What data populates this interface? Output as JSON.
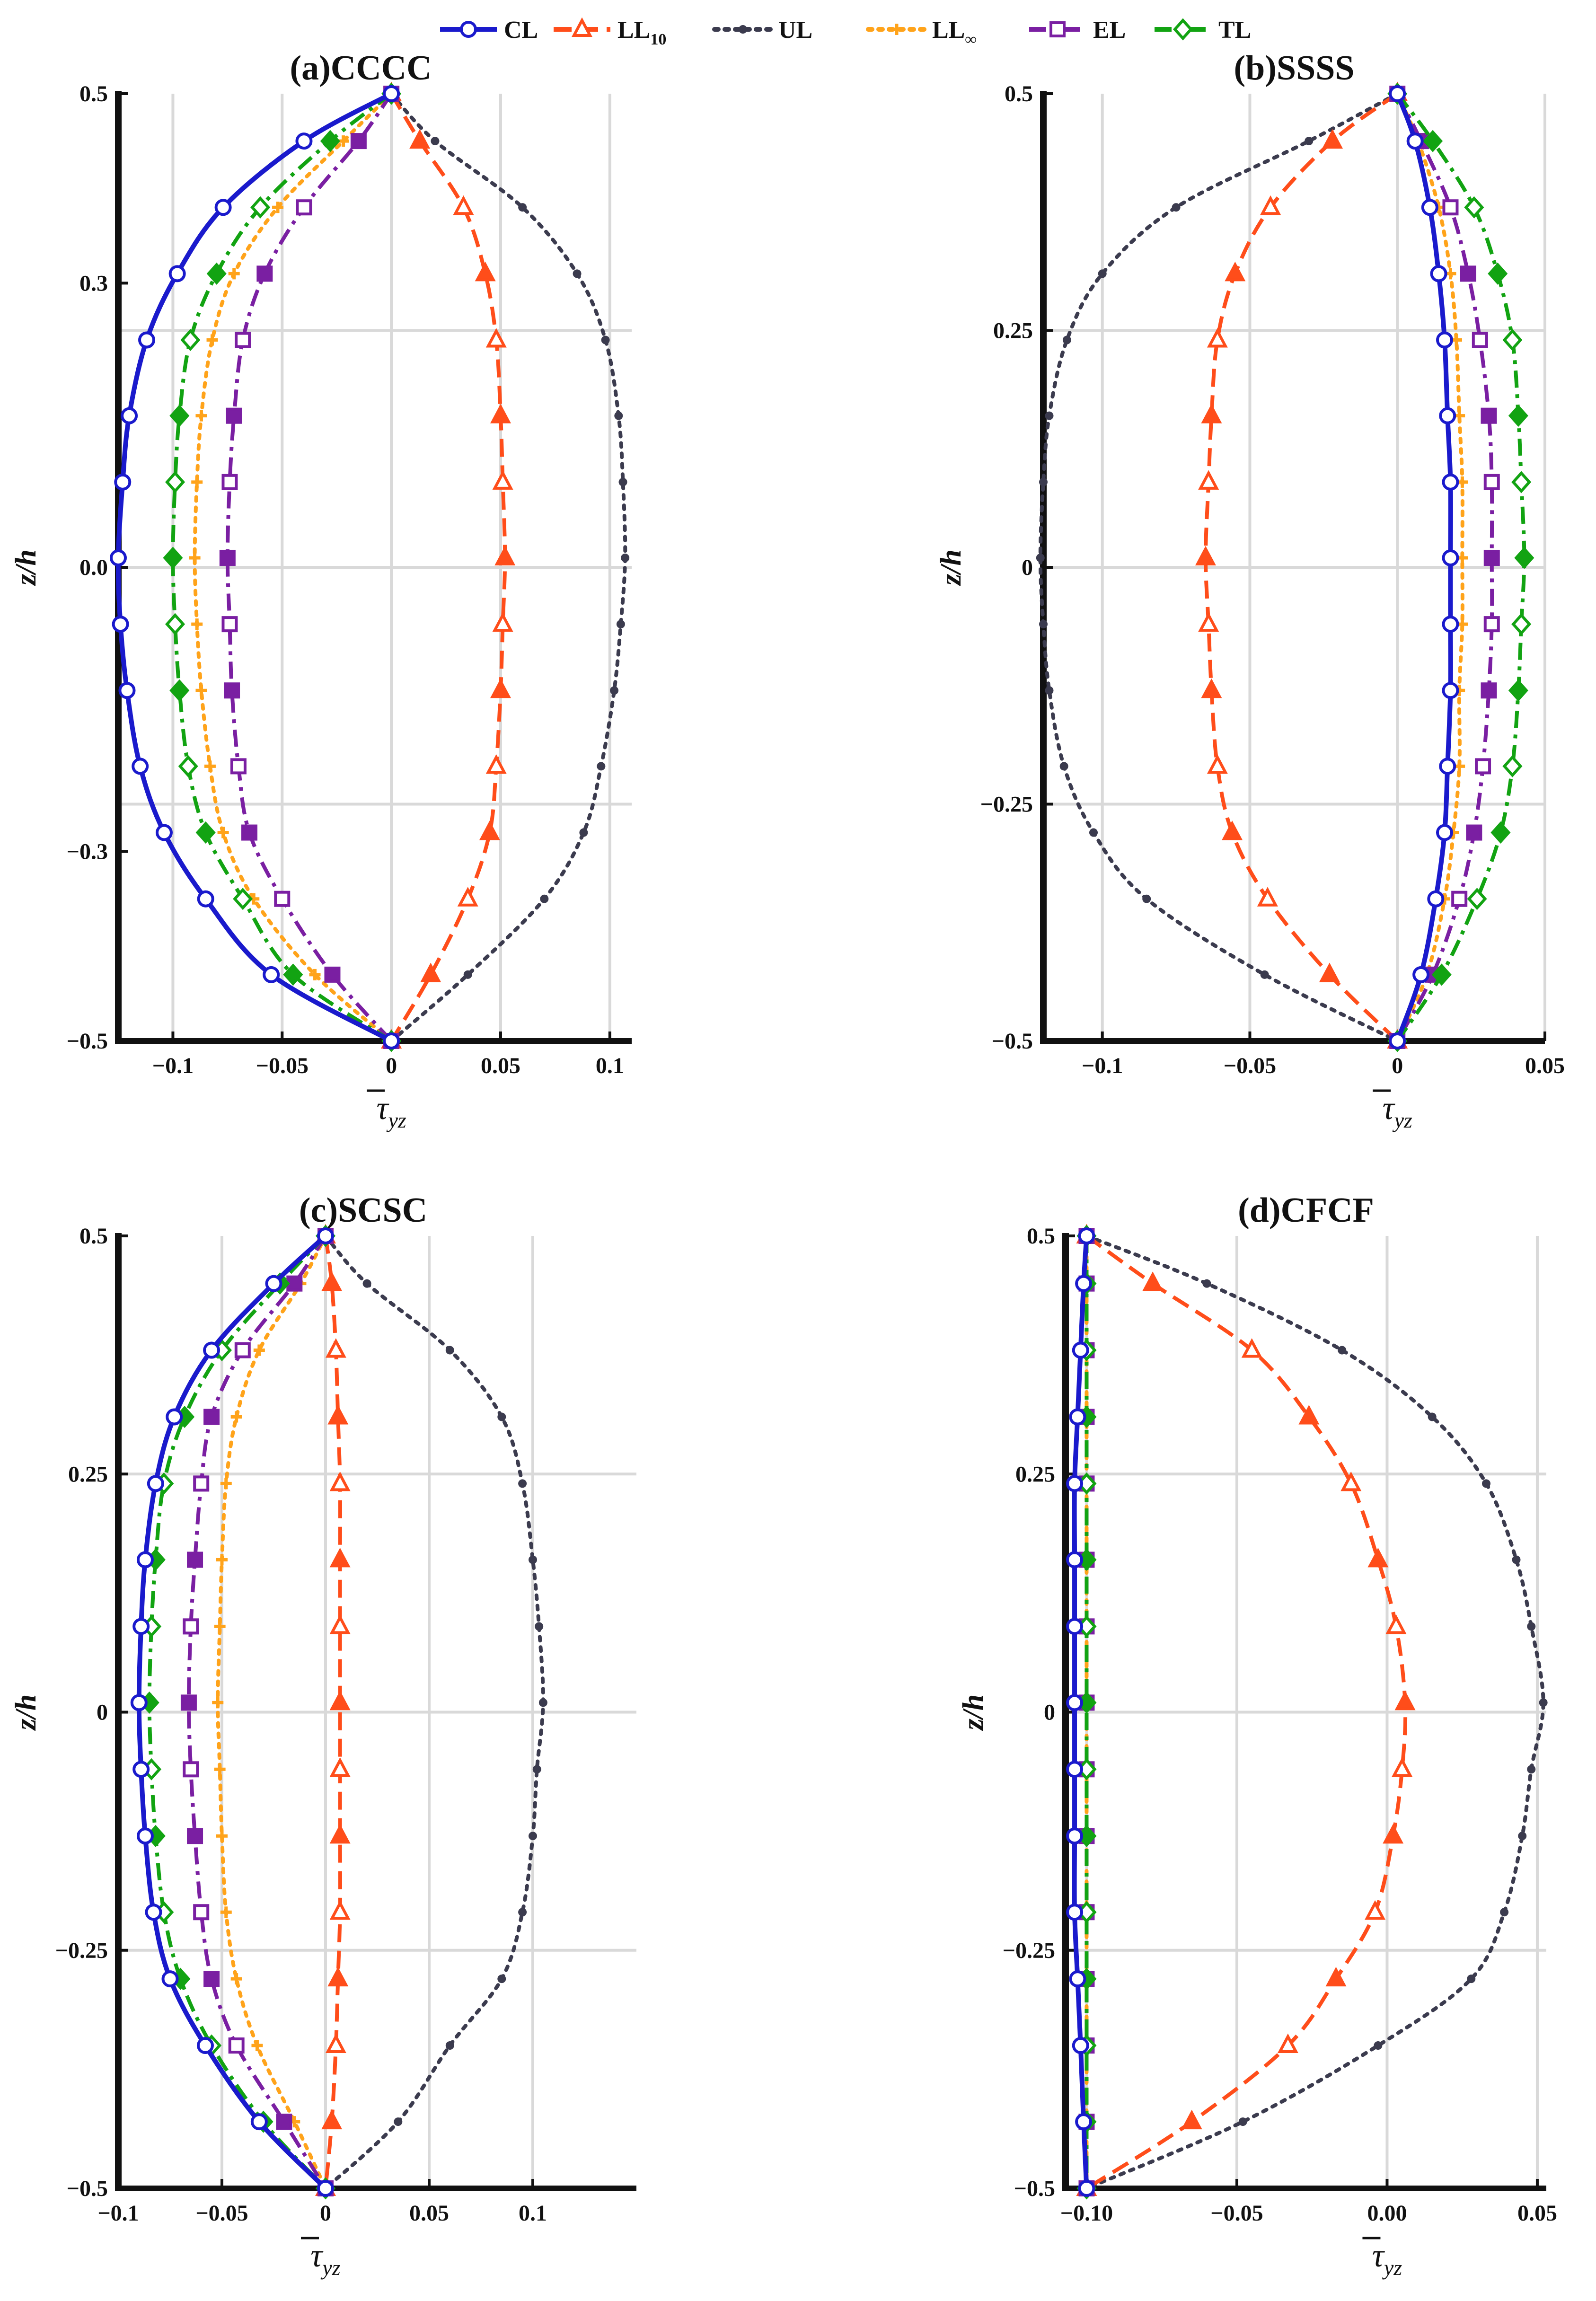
{
  "legend": [
    {
      "id": "CL",
      "label": "CL",
      "sub": "",
      "color": "#1a1acc",
      "dash": "solid",
      "marker": "circle"
    },
    {
      "id": "LL10",
      "label": "LL",
      "sub": "10",
      "color": "#ff4d1a",
      "dash": "dashed",
      "marker": "triangle"
    },
    {
      "id": "UL",
      "label": "UL",
      "sub": "",
      "color": "#3b3b4e",
      "dash": "dotted",
      "marker": "dot"
    },
    {
      "id": "LLinf",
      "label": "LL",
      "sub": "∞",
      "color": "#ffa31a",
      "dash": "dotted",
      "marker": "plus"
    },
    {
      "id": "EL",
      "label": "EL",
      "sub": "",
      "color": "#7a1fa2",
      "dash": "dashdot",
      "marker": "square"
    },
    {
      "id": "TL",
      "label": "TL",
      "sub": "",
      "color": "#12a312",
      "dash": "dashdot",
      "marker": "diamond"
    }
  ],
  "chart_data": [
    {
      "type": "line",
      "title": "(a)CCCC",
      "xlabel": "τ̄yz",
      "ylabel": "z/h",
      "xlim": [
        -0.125,
        0.11
      ],
      "ylim": [
        -0.5,
        0.5
      ],
      "xticks": [
        -0.1,
        -0.05,
        0,
        0.05,
        0.1
      ],
      "xtick_labels": [
        "−0.1",
        "−0.05",
        "0",
        "0.05",
        "0.1"
      ],
      "yticks": [
        -0.5,
        -0.3,
        0,
        0.3,
        0.5
      ],
      "ytick_labels": [
        "−0.5",
        "−0.3",
        "0.0",
        "0.3",
        "0.5"
      ],
      "ygrid": [
        -0.25,
        0,
        0.25
      ],
      "z": [
        0.5,
        0.45,
        0.38,
        0.31,
        0.24,
        0.16,
        0.09,
        0.01,
        -0.06,
        -0.13,
        -0.21,
        -0.28,
        -0.35,
        -0.43,
        -0.5
      ],
      "series": [
        {
          "name": "CL",
          "values": [
            0,
            -0.04,
            -0.077,
            -0.098,
            -0.112,
            -0.12,
            -0.123,
            -0.125,
            -0.124,
            -0.121,
            -0.115,
            -0.104,
            -0.085,
            -0.055,
            0
          ]
        },
        {
          "name": "LL10",
          "values": [
            0,
            0.013,
            0.033,
            0.043,
            0.048,
            0.05,
            0.051,
            0.052,
            0.051,
            0.05,
            0.048,
            0.045,
            0.035,
            0.018,
            0
          ]
        },
        {
          "name": "UL",
          "values": [
            0,
            0.02,
            0.06,
            0.085,
            0.098,
            0.104,
            0.106,
            0.107,
            0.105,
            0.102,
            0.096,
            0.088,
            0.07,
            0.035,
            0
          ]
        },
        {
          "name": "LLinf",
          "values": [
            0,
            -0.022,
            -0.052,
            -0.072,
            -0.082,
            -0.087,
            -0.089,
            -0.09,
            -0.089,
            -0.087,
            -0.083,
            -0.077,
            -0.063,
            -0.035,
            0
          ]
        },
        {
          "name": "EL",
          "values": [
            0,
            -0.015,
            -0.04,
            -0.058,
            -0.068,
            -0.072,
            -0.074,
            -0.075,
            -0.074,
            -0.073,
            -0.07,
            -0.065,
            -0.05,
            -0.027,
            0
          ]
        },
        {
          "name": "TL",
          "values": [
            0,
            -0.028,
            -0.06,
            -0.08,
            -0.092,
            -0.097,
            -0.099,
            -0.1,
            -0.099,
            -0.097,
            -0.093,
            -0.085,
            -0.068,
            -0.045,
            0
          ]
        }
      ]
    },
    {
      "type": "line",
      "title": "(b)SSSS",
      "xlabel": "τ̄yz",
      "ylabel": "z/h",
      "xlim": [
        -0.12,
        0.05
      ],
      "ylim": [
        -0.5,
        0.5
      ],
      "xticks": [
        -0.1,
        -0.05,
        0,
        0.05
      ],
      "xtick_labels": [
        "−0.1",
        "−0.05",
        "0",
        "0.05"
      ],
      "yticks": [
        -0.5,
        -0.25,
        0,
        0.25,
        0.5
      ],
      "ytick_labels": [
        "−0.5",
        "−0.25",
        "0",
        "0.25",
        "0.5"
      ],
      "ygrid": [
        -0.25,
        0,
        0.25
      ],
      "z": [
        0.5,
        0.45,
        0.38,
        0.31,
        0.24,
        0.16,
        0.09,
        0.01,
        -0.06,
        -0.13,
        -0.21,
        -0.28,
        -0.35,
        -0.43,
        -0.5
      ],
      "series": [
        {
          "name": "CL",
          "values": [
            0,
            0.006,
            0.011,
            0.014,
            0.016,
            0.017,
            0.018,
            0.018,
            0.018,
            0.018,
            0.017,
            0.016,
            0.013,
            0.008,
            0
          ]
        },
        {
          "name": "LL10",
          "values": [
            0,
            -0.022,
            -0.043,
            -0.055,
            -0.061,
            -0.063,
            -0.064,
            -0.065,
            -0.064,
            -0.063,
            -0.061,
            -0.056,
            -0.044,
            -0.023,
            0
          ]
        },
        {
          "name": "UL",
          "values": [
            0,
            -0.03,
            -0.075,
            -0.1,
            -0.112,
            -0.118,
            -0.12,
            -0.121,
            -0.12,
            -0.118,
            -0.113,
            -0.103,
            -0.085,
            -0.045,
            0
          ]
        },
        {
          "name": "LLinf",
          "values": [
            0,
            0.007,
            0.014,
            0.018,
            0.02,
            0.021,
            0.022,
            0.022,
            0.022,
            0.021,
            0.021,
            0.019,
            0.016,
            0.01,
            0
          ]
        },
        {
          "name": "EL",
          "values": [
            0,
            0.008,
            0.018,
            0.024,
            0.028,
            0.031,
            0.032,
            0.032,
            0.032,
            0.031,
            0.029,
            0.026,
            0.021,
            0.012,
            0
          ]
        },
        {
          "name": "TL",
          "values": [
            0,
            0.012,
            0.026,
            0.034,
            0.039,
            0.041,
            0.042,
            0.043,
            0.042,
            0.041,
            0.039,
            0.035,
            0.027,
            0.015,
            0
          ]
        }
      ]
    },
    {
      "type": "line",
      "title": "(c)SCSC",
      "xlabel": "τ̄yz",
      "ylabel": "z/h",
      "xlim": [
        -0.1,
        0.15
      ],
      "ylim": [
        -0.5,
        0.5
      ],
      "xticks": [
        -0.1,
        -0.05,
        0,
        0.05,
        0.1
      ],
      "xtick_labels": [
        "−0.1",
        "−0.05",
        "0",
        "0.05",
        "0.1"
      ],
      "yticks": [
        -0.5,
        -0.25,
        0,
        0.25,
        0.5
      ],
      "ytick_labels": [
        "−0.5",
        "−0.25",
        "0",
        "0.25",
        "0.5"
      ],
      "ygrid": [
        -0.25,
        0,
        0.25
      ],
      "z": [
        0.5,
        0.45,
        0.38,
        0.31,
        0.24,
        0.16,
        0.09,
        0.01,
        -0.06,
        -0.13,
        -0.21,
        -0.28,
        -0.35,
        -0.43,
        -0.5
      ],
      "series": [
        {
          "name": "CL",
          "values": [
            0,
            -0.025,
            -0.055,
            -0.073,
            -0.082,
            -0.087,
            -0.089,
            -0.09,
            -0.089,
            -0.087,
            -0.083,
            -0.075,
            -0.058,
            -0.032,
            0
          ]
        },
        {
          "name": "LL10",
          "values": [
            0,
            0.003,
            0.005,
            0.006,
            0.007,
            0.007,
            0.007,
            0.007,
            0.007,
            0.007,
            0.007,
            0.006,
            0.005,
            0.003,
            0
          ]
        },
        {
          "name": "UL",
          "values": [
            0,
            0.02,
            0.06,
            0.085,
            0.095,
            0.1,
            0.103,
            0.105,
            0.102,
            0.1,
            0.095,
            0.085,
            0.06,
            0.035,
            0
          ]
        },
        {
          "name": "LLinf",
          "values": [
            0,
            -0.012,
            -0.032,
            -0.043,
            -0.048,
            -0.05,
            -0.051,
            -0.052,
            -0.051,
            -0.05,
            -0.048,
            -0.043,
            -0.033,
            -0.015,
            0
          ]
        },
        {
          "name": "EL",
          "values": [
            0,
            -0.015,
            -0.04,
            -0.055,
            -0.06,
            -0.063,
            -0.065,
            -0.066,
            -0.065,
            -0.063,
            -0.06,
            -0.055,
            -0.043,
            -0.02,
            0
          ]
        },
        {
          "name": "TL",
          "values": [
            0,
            -0.022,
            -0.05,
            -0.068,
            -0.078,
            -0.082,
            -0.084,
            -0.085,
            -0.084,
            -0.082,
            -0.078,
            -0.07,
            -0.055,
            -0.03,
            0
          ]
        }
      ]
    },
    {
      "type": "line",
      "title": "(d)CFCF",
      "xlabel": "τ̄yz",
      "ylabel": "z/h",
      "xlim": [
        -0.107,
        0.053
      ],
      "ylim": [
        -0.5,
        0.5
      ],
      "xticks": [
        -0.1,
        -0.05,
        0,
        0.05
      ],
      "xtick_labels": [
        "−0.10",
        "−0.05",
        "0.00",
        "0.05"
      ],
      "yticks": [
        -0.5,
        -0.25,
        0,
        0.25,
        0.5
      ],
      "ytick_labels": [
        "−0.5",
        "−0.25",
        "0",
        "0.25",
        "0.5"
      ],
      "ygrid": [
        -0.25,
        0,
        0.25
      ],
      "z": [
        0.5,
        0.45,
        0.38,
        0.31,
        0.24,
        0.16,
        0.09,
        0.01,
        -0.06,
        -0.13,
        -0.21,
        -0.28,
        -0.35,
        -0.43,
        -0.5
      ],
      "series": [
        {
          "name": "CL",
          "values": [
            -0.1,
            -0.101,
            -0.102,
            -0.103,
            -0.104,
            -0.104,
            -0.104,
            -0.104,
            -0.104,
            -0.104,
            -0.104,
            -0.103,
            -0.102,
            -0.101,
            -0.1
          ]
        },
        {
          "name": "LL10",
          "values": [
            -0.1,
            -0.078,
            -0.045,
            -0.026,
            -0.012,
            -0.003,
            0.003,
            0.006,
            0.005,
            0.002,
            -0.004,
            -0.017,
            -0.033,
            -0.065,
            -0.1
          ]
        },
        {
          "name": "UL",
          "values": [
            -0.1,
            -0.06,
            -0.015,
            0.015,
            0.033,
            0.043,
            0.048,
            0.052,
            0.048,
            0.045,
            0.039,
            0.028,
            -0.003,
            -0.048,
            -0.1
          ]
        },
        {
          "name": "LLinf",
          "values": [
            -0.1,
            -0.1,
            -0.1,
            -0.1,
            -0.1,
            -0.1,
            -0.1,
            -0.1,
            -0.1,
            -0.1,
            -0.1,
            -0.1,
            -0.1,
            -0.1,
            -0.1
          ]
        },
        {
          "name": "EL",
          "values": [
            -0.1,
            -0.1,
            -0.1,
            -0.1,
            -0.1,
            -0.1,
            -0.1,
            -0.1,
            -0.1,
            -0.1,
            -0.1,
            -0.1,
            -0.1,
            -0.1,
            -0.1
          ]
        },
        {
          "name": "TL",
          "values": [
            -0.1,
            -0.1,
            -0.1,
            -0.1,
            -0.1,
            -0.1,
            -0.1,
            -0.1,
            -0.1,
            -0.1,
            -0.1,
            -0.1,
            -0.1,
            -0.1,
            -0.1
          ]
        }
      ]
    }
  ]
}
